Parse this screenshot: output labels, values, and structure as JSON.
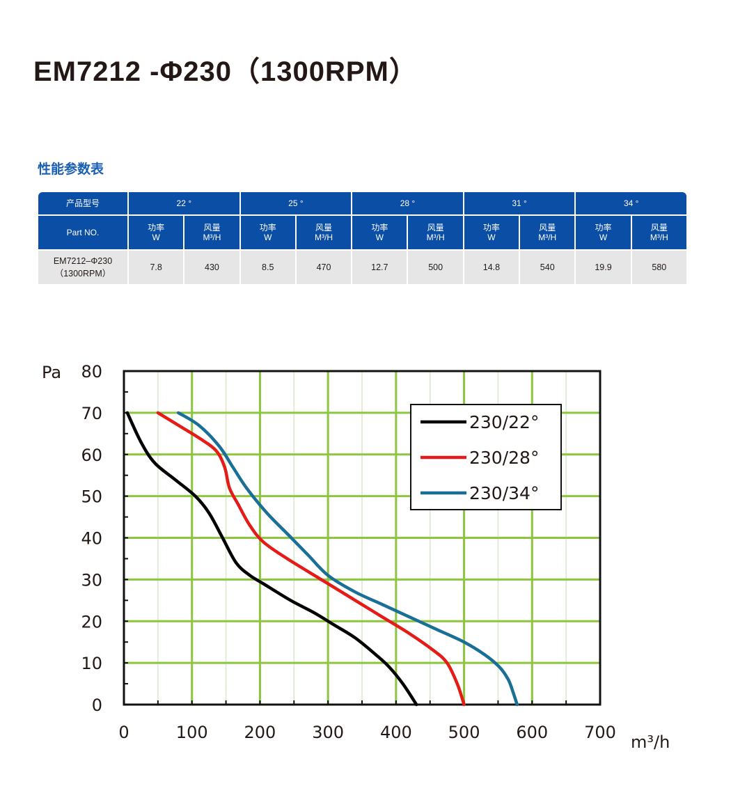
{
  "page": {
    "title": "EM7212 -Φ230（1300RPM）",
    "table_title": "性能参数表"
  },
  "table": {
    "product_label": "产品型号",
    "part_label": "Part NO.",
    "angles": [
      "22 °",
      "25 °",
      "28 °",
      "31 °",
      "34 °"
    ],
    "power_label": "功率",
    "power_unit": "W",
    "flow_label": "风量",
    "flow_unit": "M³/H",
    "row": {
      "part_line1": "EM7212–Φ230",
      "part_line2": "（1300RPM）",
      "values": [
        "7.8",
        "430",
        "8.5",
        "470",
        "12.7",
        "500",
        "14.8",
        "540",
        "19.9",
        "580"
      ]
    }
  },
  "chart_data": {
    "type": "line",
    "ylabel": "Pa",
    "xlabel": "m³/h",
    "xlim": [
      0,
      700
    ],
    "ylim": [
      0,
      80
    ],
    "x_ticks": [
      "0",
      "100",
      "200",
      "300",
      "400",
      "500",
      "600",
      "700"
    ],
    "y_ticks": [
      "0",
      "10",
      "20",
      "30",
      "40",
      "50",
      "60",
      "70",
      "80"
    ],
    "grid": true,
    "legend_position": "top-right",
    "series": [
      {
        "name": "230/22°",
        "color": "#000000",
        "points": [
          [
            5,
            70
          ],
          [
            25,
            63
          ],
          [
            45,
            58
          ],
          [
            75,
            54
          ],
          [
            105,
            50
          ],
          [
            125,
            46
          ],
          [
            145,
            40
          ],
          [
            165,
            34
          ],
          [
            185,
            31
          ],
          [
            205,
            29
          ],
          [
            245,
            25
          ],
          [
            280,
            22
          ],
          [
            310,
            19
          ],
          [
            340,
            16
          ],
          [
            370,
            12
          ],
          [
            390,
            9
          ],
          [
            410,
            5
          ],
          [
            430,
            0
          ]
        ]
      },
      {
        "name": "230/28°",
        "color": "#e41b17",
        "points": [
          [
            50,
            70
          ],
          [
            80,
            67
          ],
          [
            110,
            64
          ],
          [
            135,
            61
          ],
          [
            148,
            57
          ],
          [
            155,
            52
          ],
          [
            168,
            48
          ],
          [
            185,
            43
          ],
          [
            205,
            39
          ],
          [
            240,
            35
          ],
          [
            290,
            30
          ],
          [
            340,
            25
          ],
          [
            380,
            21
          ],
          [
            420,
            17
          ],
          [
            455,
            13
          ],
          [
            475,
            10
          ],
          [
            490,
            5
          ],
          [
            500,
            0
          ]
        ]
      },
      {
        "name": "230/34°",
        "color": "#1a6f97",
        "points": [
          [
            80,
            70
          ],
          [
            110,
            67
          ],
          [
            140,
            62
          ],
          [
            160,
            57
          ],
          [
            180,
            52
          ],
          [
            210,
            46
          ],
          [
            240,
            41
          ],
          [
            270,
            36
          ],
          [
            300,
            31
          ],
          [
            340,
            27
          ],
          [
            380,
            24
          ],
          [
            420,
            21
          ],
          [
            460,
            18
          ],
          [
            500,
            15
          ],
          [
            530,
            12
          ],
          [
            552,
            9
          ],
          [
            565,
            6
          ],
          [
            572,
            3
          ],
          [
            578,
            0
          ]
        ]
      }
    ]
  }
}
